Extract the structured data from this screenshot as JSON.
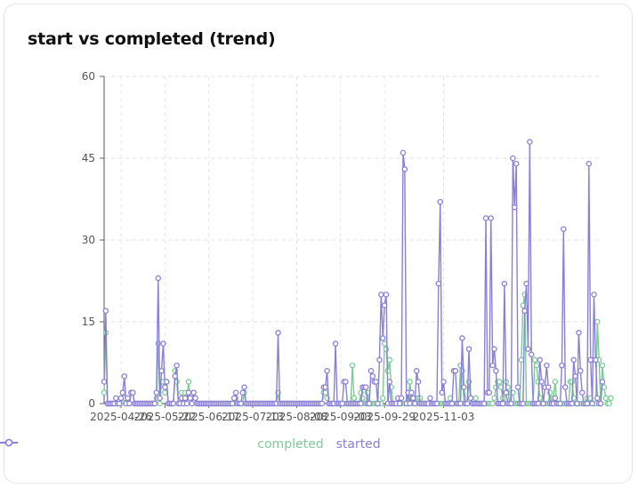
{
  "title": "start vs completed (trend)",
  "chart_data": {
    "type": "line",
    "title": "start vs completed (trend)",
    "xlabel": "",
    "ylabel": "",
    "ylim": [
      0,
      60
    ],
    "y_ticks": [
      "0",
      "15",
      "30",
      "45",
      "60"
    ],
    "x_start": "2025-04-16",
    "x_ticks": [
      "2025-04-26",
      "2025-05-22",
      "2025-06-17",
      "2025-07-13",
      "2025-08-08",
      "2025-09-03",
      "2025-09-29",
      "2025-11-03"
    ],
    "grid": true,
    "legend_position": "bottom",
    "series": [
      {
        "name": "started",
        "color": "#8a7fd6",
        "values": [
          4,
          17,
          0,
          0,
          0,
          0,
          0,
          1,
          0,
          0,
          1,
          2,
          5,
          0,
          1,
          0,
          2,
          2,
          0,
          0,
          0,
          0,
          0,
          0,
          0,
          0,
          0,
          0,
          0,
          0,
          0,
          2,
          23,
          1,
          6,
          11,
          3,
          4,
          0,
          0,
          0,
          0,
          5,
          7,
          0,
          0,
          1,
          0,
          1,
          0,
          2,
          1,
          0,
          2,
          1,
          0,
          0,
          0,
          0,
          0,
          0,
          0,
          0,
          0,
          0,
          0,
          0,
          0,
          0,
          0,
          0,
          0,
          0,
          0,
          0,
          0,
          0,
          1,
          2,
          0,
          0,
          0,
          2,
          3,
          0,
          0,
          0,
          0,
          0,
          0,
          0,
          0,
          0,
          0,
          0,
          0,
          0,
          0,
          0,
          0,
          0,
          0,
          0,
          13,
          0,
          0,
          0,
          0,
          0,
          0,
          0,
          0,
          0,
          0,
          0,
          0,
          0,
          0,
          0,
          0,
          0,
          0,
          0,
          0,
          0,
          0,
          0,
          0,
          0,
          0,
          3,
          3,
          6,
          0,
          0,
          0,
          0,
          11,
          0,
          0,
          0,
          0,
          4,
          4,
          0,
          0,
          0,
          0,
          0,
          0,
          0,
          0,
          0,
          3,
          3,
          3,
          0,
          0,
          6,
          5,
          4,
          4,
          0,
          8,
          20,
          12,
          18,
          20,
          0,
          4,
          0,
          0,
          0,
          0,
          1,
          0,
          1,
          46,
          43,
          0,
          2,
          0,
          2,
          1,
          0,
          6,
          4,
          0,
          0,
          0,
          0,
          0,
          0,
          1,
          0,
          0,
          0,
          0,
          22,
          37,
          2,
          4,
          0,
          0,
          0,
          0,
          0,
          6,
          6,
          0,
          0,
          0,
          12,
          3,
          0,
          0,
          10,
          1,
          0,
          0,
          0,
          0,
          0,
          0,
          0,
          0,
          34,
          2,
          2,
          34,
          7,
          10,
          6,
          0,
          0,
          0,
          0,
          22,
          2,
          0,
          0,
          0,
          45,
          36,
          44,
          3,
          0,
          0,
          0,
          17,
          22,
          10,
          48,
          9,
          0,
          0,
          0,
          0,
          8,
          4,
          0,
          3,
          7,
          3,
          0,
          0,
          0,
          1,
          0,
          0,
          0,
          7,
          32,
          3,
          0,
          0,
          0,
          0,
          8,
          5,
          0,
          13,
          6,
          2,
          0,
          0,
          0,
          44,
          8,
          0,
          20,
          8,
          1,
          0,
          0,
          4
        ]
      },
      {
        "name": "completed",
        "color": "#7ccb95",
        "values": [
          2,
          13,
          0,
          0,
          0,
          0,
          0,
          0,
          0,
          0,
          0,
          1,
          1,
          0,
          1,
          0,
          2,
          2,
          0,
          0,
          0,
          0,
          0,
          0,
          0,
          0,
          0,
          0,
          0,
          0,
          0,
          1,
          11,
          0,
          4,
          4,
          2,
          4,
          0,
          0,
          0,
          0,
          6,
          4,
          0,
          0,
          2,
          0,
          2,
          0,
          4,
          1,
          0,
          2,
          1,
          0,
          0,
          0,
          0,
          0,
          0,
          0,
          0,
          0,
          0,
          0,
          0,
          0,
          0,
          0,
          0,
          0,
          0,
          0,
          0,
          0,
          0,
          0,
          1,
          0,
          0,
          0,
          0,
          2,
          0,
          0,
          0,
          0,
          0,
          0,
          0,
          0,
          0,
          0,
          0,
          0,
          0,
          0,
          0,
          0,
          0,
          0,
          0,
          2,
          0,
          0,
          0,
          0,
          0,
          0,
          0,
          0,
          0,
          0,
          0,
          0,
          0,
          0,
          0,
          0,
          0,
          0,
          0,
          0,
          0,
          0,
          0,
          0,
          0,
          0,
          2,
          2,
          1,
          0,
          0,
          0,
          0,
          0,
          0,
          0,
          0,
          0,
          0,
          0,
          0,
          0,
          0,
          7,
          1,
          0,
          0,
          0,
          2,
          1,
          0,
          0,
          2,
          0,
          0,
          0,
          0,
          0,
          0,
          0,
          0,
          1,
          11,
          10,
          6,
          8,
          3,
          0,
          0,
          0,
          0,
          0,
          0,
          0,
          0,
          0,
          0,
          4,
          1,
          0,
          1,
          0,
          1,
          1,
          0,
          0,
          0,
          0,
          0,
          0,
          0,
          0,
          0,
          0,
          0,
          0,
          0,
          0,
          0,
          0,
          0,
          1,
          0,
          0,
          0,
          0,
          0,
          7,
          6,
          0,
          0,
          0,
          4,
          1,
          0,
          0,
          1,
          0,
          0,
          0,
          0,
          0,
          0,
          0,
          0,
          0,
          0,
          1,
          3,
          4,
          4,
          3,
          1,
          0,
          4,
          3,
          0,
          2,
          2,
          0,
          0,
          0,
          0,
          8,
          18,
          20,
          0,
          0,
          0,
          0,
          0,
          8,
          7,
          4,
          1,
          0,
          0,
          0,
          0,
          0,
          2,
          0,
          1,
          4,
          0,
          0,
          0,
          0,
          0,
          0,
          0,
          0,
          4,
          4,
          1,
          0,
          0,
          0,
          0,
          0,
          0,
          0,
          1,
          0,
          1,
          0,
          0,
          0,
          15,
          8,
          0,
          7,
          3,
          1,
          0,
          0,
          1
        ]
      }
    ]
  }
}
